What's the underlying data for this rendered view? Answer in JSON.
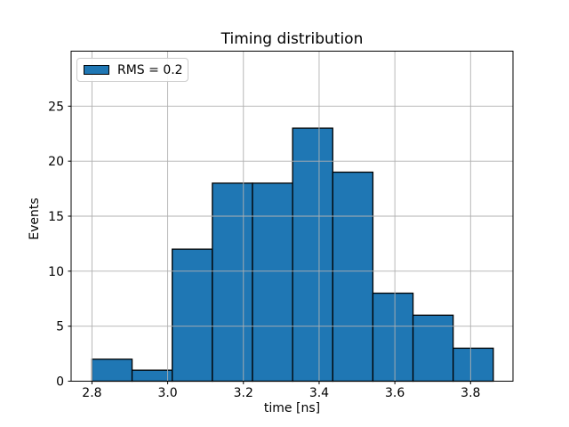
{
  "figure": {
    "title": "Timing distribution",
    "xlabel": "time [ns]",
    "ylabel": "Events",
    "legend": {
      "label": "RMS = 0.2",
      "position": "upper left"
    }
  },
  "chart_data": {
    "type": "bar",
    "subtype": "histogram",
    "title": "Timing distribution",
    "xlabel": "time [ns]",
    "ylabel": "Events",
    "bin_edges": [
      2.8,
      2.906,
      3.012,
      3.118,
      3.224,
      3.33,
      3.436,
      3.542,
      3.648,
      3.754,
      3.86
    ],
    "counts": [
      2,
      1,
      12,
      18,
      18,
      23,
      19,
      8,
      6,
      3
    ],
    "series_name": "RMS = 0.2",
    "xticks": [
      2.8,
      3.0,
      3.2,
      3.4,
      3.6,
      3.8
    ],
    "xtick_labels": [
      "2.8",
      "3.0",
      "3.2",
      "3.4",
      "3.6",
      "3.8"
    ],
    "yticks": [
      0,
      5,
      10,
      15,
      20,
      25
    ],
    "ytick_labels": [
      "0",
      "5",
      "10",
      "15",
      "20",
      "25"
    ],
    "xlim": [
      2.745,
      3.912
    ],
    "ylim": [
      0,
      30
    ],
    "grid": true,
    "grid_above_bars": true,
    "legend_position": "upper left",
    "colors": {
      "bar_fill": "#1f77b4",
      "bar_edge": "#000000",
      "grid": "#b0b0b0",
      "spine": "#000000",
      "tick_label": "#000000",
      "legend_border": "#cccccc",
      "background": "#ffffff"
    }
  }
}
